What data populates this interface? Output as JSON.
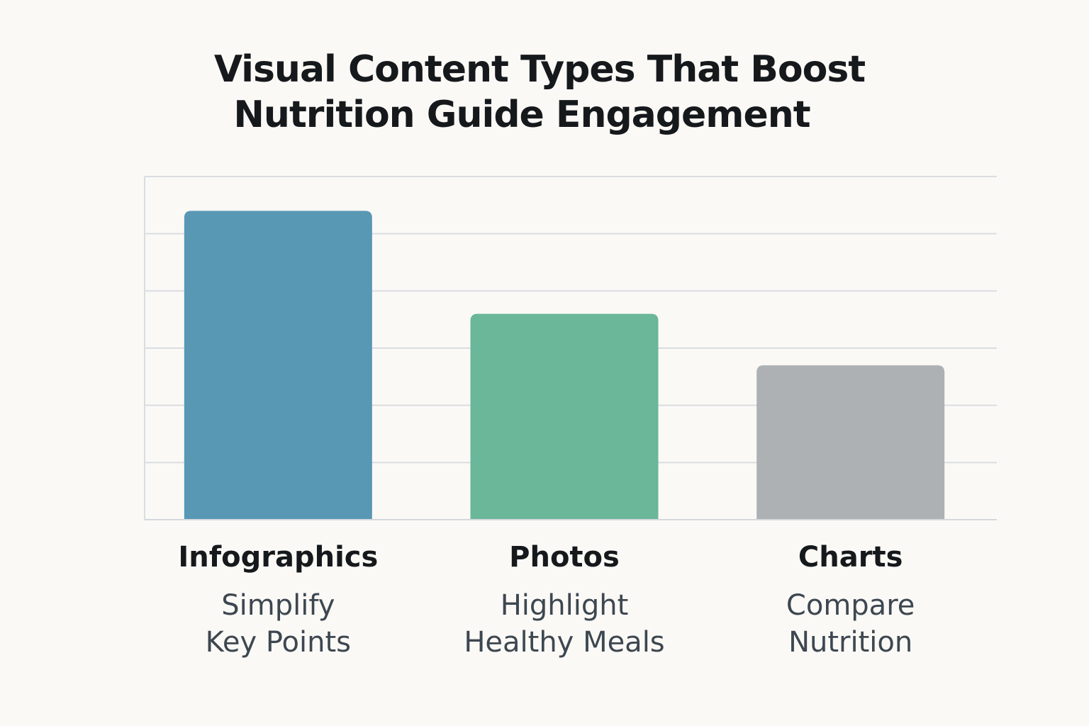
{
  "title": {
    "line1": "Visual Content Types That Boost",
    "line2": "Nutrition Guide Engagement"
  },
  "chart_data": {
    "type": "bar",
    "title": "Visual Content Types That Boost Nutrition Guide Engagement",
    "categories": [
      "Infographics",
      "Photos",
      "Charts"
    ],
    "descriptions": [
      [
        "Simplify",
        "Key Points"
      ],
      [
        "Highlight",
        "Healthy Meals"
      ],
      [
        "Compare",
        "Nutrition"
      ]
    ],
    "values": [
      5.4,
      3.6,
      2.7
    ],
    "ylim": [
      0,
      6
    ],
    "grid": true,
    "y_tick_labels_shown": false,
    "colors": [
      "#5898b5",
      "#6ab79a",
      "#adb1b4"
    ]
  }
}
